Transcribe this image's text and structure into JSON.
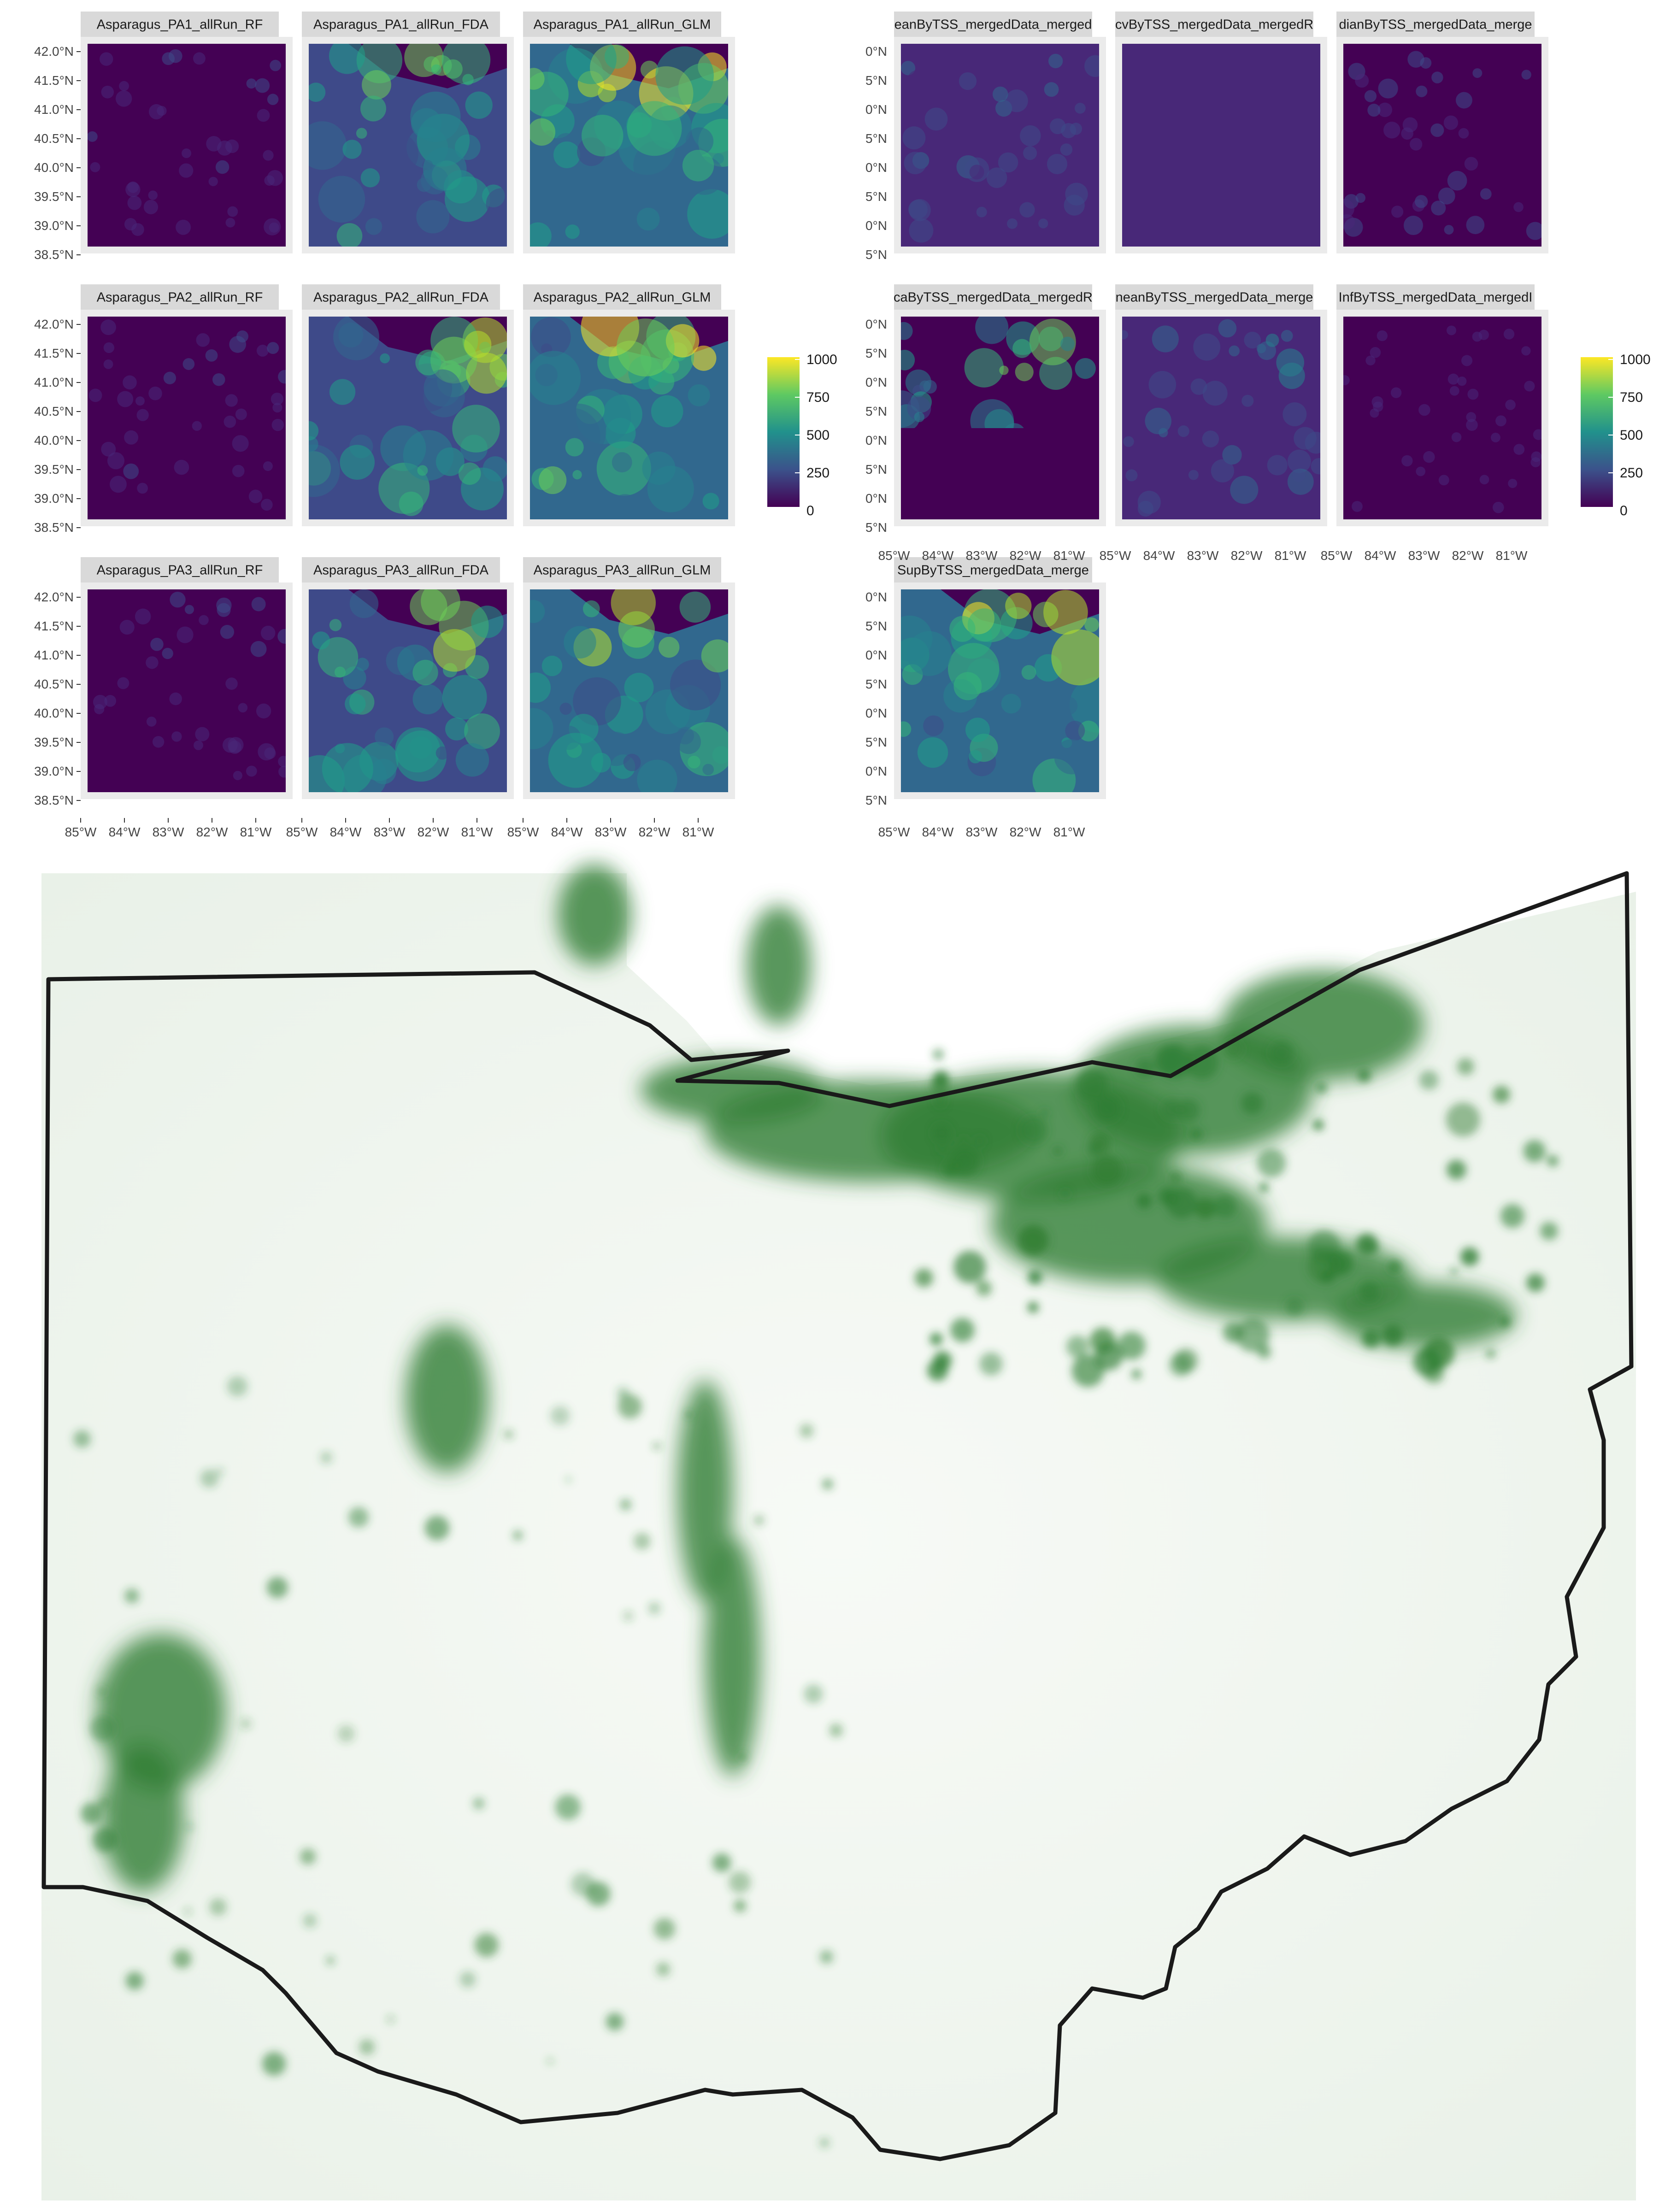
{
  "figure_a": {
    "panels": [
      {
        "label": "Asparagus_PA1_allRun_RF",
        "style": "rf"
      },
      {
        "label": "Asparagus_PA1_allRun_FDA",
        "style": "fda"
      },
      {
        "label": "Asparagus_PA1_allRun_GLM",
        "style": "glm"
      },
      {
        "label": "Asparagus_PA2_allRun_RF",
        "style": "rf"
      },
      {
        "label": "Asparagus_PA2_allRun_FDA",
        "style": "fda"
      },
      {
        "label": "Asparagus_PA2_allRun_GLM",
        "style": "glm"
      },
      {
        "label": "Asparagus_PA3_allRun_RF",
        "style": "rf"
      },
      {
        "label": "Asparagus_PA3_allRun_FDA",
        "style": "fda"
      },
      {
        "label": "Asparagus_PA3_allRun_GLM",
        "style": "glm"
      }
    ],
    "lat_ticks": [
      "42.0°N",
      "41.5°N",
      "41.0°N",
      "40.5°N",
      "40.0°N",
      "39.5°N",
      "39.0°N",
      "38.5°N"
    ],
    "lon_ticks": [
      "85°W",
      "84°W",
      "83°W",
      "82°W",
      "81°W"
    ],
    "legend": {
      "ticks": [
        "1000",
        "750",
        "500",
        "250",
        "0"
      ]
    }
  },
  "figure_b": {
    "panels": [
      {
        "label": "eanByTSS_mergedData_merged",
        "style": "mean"
      },
      {
        "label": "cvByTSS_mergedData_mergedR",
        "style": "cv"
      },
      {
        "label": "dianByTSS_mergedData_merge",
        "style": "median"
      },
      {
        "label": "caByTSS_mergedData_mergedR",
        "style": "ca"
      },
      {
        "label": "neanByTSS_mergedData_merge",
        "style": "wmean"
      },
      {
        "label": "InfByTSS_mergedData_mergedI",
        "style": "ciinf"
      },
      {
        "label": "SupByTSS_mergedData_merge",
        "style": "cisup"
      }
    ],
    "lat_ticks_visible": [
      "0°N",
      "5°N",
      "0°N",
      "5°N",
      "0°N",
      "5°N",
      "0°N",
      "5°N"
    ],
    "lon_ticks": [
      "85°W",
      "84°W",
      "83°W",
      "82°W",
      "81°W"
    ],
    "legend": {
      "ticks": [
        "1000",
        "750",
        "500",
        "250",
        "0"
      ]
    }
  },
  "suitability_map": {
    "color_ramp": [
      "#ffffff",
      "#2e7d32"
    ],
    "boundary_color": "#1a1a1a"
  },
  "colors": {
    "viridis": [
      "#440154",
      "#482878",
      "#3e4a89",
      "#31688e",
      "#26828e",
      "#1f9e89",
      "#35b779",
      "#6ece58",
      "#b5de2b",
      "#fde725"
    ],
    "panel_background": "#ebebeb",
    "strip_background": "#d9d9d9"
  }
}
